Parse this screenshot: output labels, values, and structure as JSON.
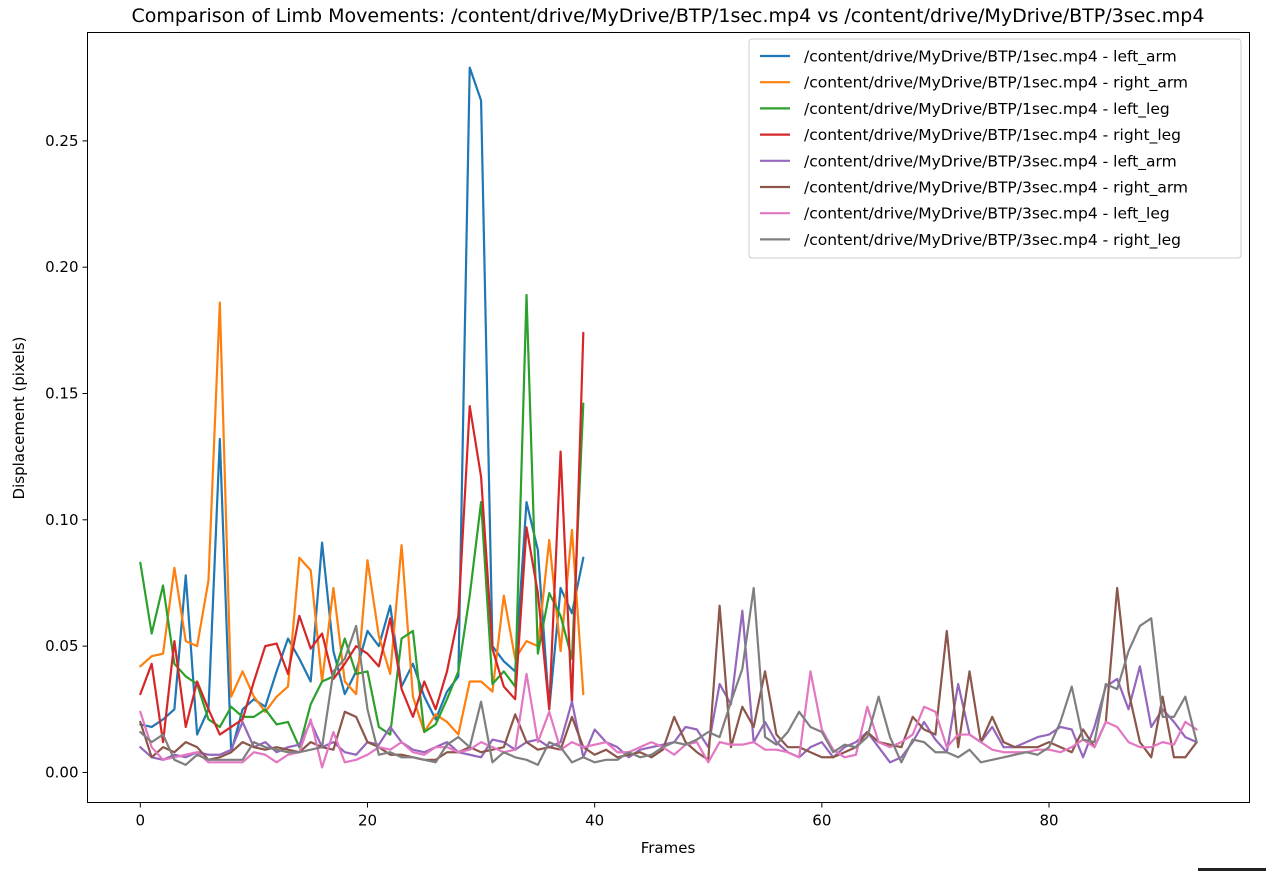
{
  "chart_data": {
    "type": "line",
    "title": "Comparison of Limb Movements: /content/drive/MyDrive/BTP/1sec.mp4 vs /content/drive/MyDrive/BTP/3sec.mp4",
    "xlabel": "Frames",
    "ylabel": "Displacement (pixels)",
    "xlim": [
      -4.65,
      97.65
    ],
    "ylim": [
      -0.0119,
      0.2929
    ],
    "xticks": [
      0,
      20,
      40,
      60,
      80
    ],
    "yticks": [
      0.0,
      0.05,
      0.1,
      0.15,
      0.2,
      0.25
    ],
    "xtick_labels": [
      "0",
      "20",
      "40",
      "60",
      "80"
    ],
    "ytick_labels": [
      "0.00",
      "0.05",
      "0.10",
      "0.15",
      "0.20",
      "0.25"
    ],
    "grid": false,
    "legend_position": "upper right",
    "series": [
      {
        "name": "/content/drive/MyDrive/BTP/1sec.mp4 - left_arm",
        "color": "#1f77b4",
        "values": [
          0.019,
          0.018,
          0.021,
          0.025,
          0.078,
          0.015,
          0.025,
          0.132,
          0.008,
          0.025,
          0.029,
          0.026,
          0.04,
          0.053,
          0.045,
          0.036,
          0.091,
          0.048,
          0.031,
          0.04,
          0.056,
          0.05,
          0.066,
          0.034,
          0.043,
          0.03,
          0.021,
          0.032,
          0.038,
          0.279,
          0.266,
          0.05,
          0.044,
          0.04,
          0.107,
          0.088,
          0.025,
          0.073,
          0.063,
          0.085
        ]
      },
      {
        "name": "/content/drive/MyDrive/BTP/1sec.mp4 - right_arm",
        "color": "#ff7f0e",
        "values": [
          0.042,
          0.046,
          0.047,
          0.081,
          0.052,
          0.05,
          0.076,
          0.186,
          0.03,
          0.04,
          0.03,
          0.024,
          0.03,
          0.034,
          0.085,
          0.08,
          0.036,
          0.073,
          0.036,
          0.031,
          0.084,
          0.054,
          0.039,
          0.09,
          0.03,
          0.016,
          0.023,
          0.02,
          0.015,
          0.036,
          0.036,
          0.032,
          0.07,
          0.045,
          0.052,
          0.05,
          0.092,
          0.048,
          0.096,
          0.031
        ]
      },
      {
        "name": "/content/drive/MyDrive/BTP/1sec.mp4 - left_leg",
        "color": "#2ca02c",
        "values": [
          0.083,
          0.055,
          0.074,
          0.043,
          0.038,
          0.035,
          0.021,
          0.018,
          0.026,
          0.022,
          0.022,
          0.025,
          0.019,
          0.02,
          0.01,
          0.027,
          0.036,
          0.038,
          0.053,
          0.039,
          0.04,
          0.018,
          0.015,
          0.053,
          0.056,
          0.016,
          0.019,
          0.029,
          0.04,
          0.07,
          0.107,
          0.035,
          0.04,
          0.034,
          0.189,
          0.047,
          0.071,
          0.062,
          0.045,
          0.146
        ]
      },
      {
        "name": "/content/drive/MyDrive/BTP/1sec.mp4 - right_leg",
        "color": "#d62728",
        "values": [
          0.031,
          0.043,
          0.012,
          0.052,
          0.018,
          0.036,
          0.025,
          0.015,
          0.018,
          0.021,
          0.036,
          0.05,
          0.051,
          0.039,
          0.062,
          0.049,
          0.055,
          0.037,
          0.043,
          0.05,
          0.047,
          0.042,
          0.061,
          0.033,
          0.022,
          0.036,
          0.025,
          0.04,
          0.062,
          0.145,
          0.117,
          0.049,
          0.034,
          0.029,
          0.097,
          0.071,
          0.025,
          0.127,
          0.027,
          0.174
        ]
      },
      {
        "name": "/content/drive/MyDrive/BTP/3sec.mp4 - left_arm",
        "color": "#9467bd",
        "values": [
          0.01,
          0.006,
          0.005,
          0.007,
          0.006,
          0.008,
          0.007,
          0.007,
          0.009,
          0.02,
          0.01,
          0.012,
          0.008,
          0.01,
          0.011,
          0.02,
          0.01,
          0.012,
          0.008,
          0.007,
          0.012,
          0.011,
          0.018,
          0.012,
          0.009,
          0.008,
          0.01,
          0.012,
          0.008,
          0.007,
          0.006,
          0.013,
          0.012,
          0.009,
          0.012,
          0.013,
          0.01,
          0.012,
          0.028,
          0.006,
          0.017,
          0.012,
          0.01,
          0.006,
          0.009,
          0.01,
          0.011,
          0.012,
          0.018,
          0.017,
          0.01,
          0.035,
          0.027,
          0.064,
          0.012,
          0.02,
          0.012,
          0.008,
          0.006,
          0.01,
          0.012,
          0.006,
          0.01,
          0.012,
          0.016,
          0.01,
          0.004,
          0.006,
          0.012,
          0.02,
          0.013,
          0.008,
          0.035,
          0.015,
          0.012,
          0.018,
          0.01,
          0.01,
          0.012,
          0.014,
          0.015,
          0.018,
          0.017,
          0.006,
          0.018,
          0.034,
          0.037,
          0.025,
          0.042,
          0.018,
          0.025,
          0.02,
          0.014,
          0.012
        ]
      },
      {
        "name": "/content/drive/MyDrive/BTP/3sec.mp4 - right_arm",
        "color": "#8c564b",
        "values": [
          0.02,
          0.006,
          0.01,
          0.008,
          0.012,
          0.01,
          0.005,
          0.006,
          0.008,
          0.012,
          0.01,
          0.009,
          0.01,
          0.009,
          0.008,
          0.012,
          0.01,
          0.009,
          0.024,
          0.022,
          0.012,
          0.01,
          0.007,
          0.007,
          0.006,
          0.005,
          0.005,
          0.008,
          0.008,
          0.01,
          0.008,
          0.009,
          0.01,
          0.023,
          0.012,
          0.009,
          0.01,
          0.009,
          0.022,
          0.01,
          0.007,
          0.009,
          0.006,
          0.007,
          0.008,
          0.006,
          0.009,
          0.022,
          0.012,
          0.008,
          0.005,
          0.066,
          0.01,
          0.026,
          0.018,
          0.04,
          0.015,
          0.01,
          0.01,
          0.008,
          0.006,
          0.006,
          0.008,
          0.01,
          0.016,
          0.012,
          0.011,
          0.01,
          0.022,
          0.017,
          0.015,
          0.056,
          0.01,
          0.04,
          0.012,
          0.022,
          0.012,
          0.01,
          0.01,
          0.01,
          0.012,
          0.01,
          0.008,
          0.017,
          0.01,
          0.02,
          0.073,
          0.032,
          0.012,
          0.006,
          0.03,
          0.006,
          0.006,
          0.012
        ]
      },
      {
        "name": "/content/drive/MyDrive/BTP/3sec.mp4 - left_leg",
        "color": "#e377c2",
        "values": [
          0.024,
          0.01,
          0.005,
          0.006,
          0.007,
          0.008,
          0.004,
          0.004,
          0.004,
          0.004,
          0.008,
          0.007,
          0.004,
          0.007,
          0.008,
          0.021,
          0.002,
          0.016,
          0.004,
          0.005,
          0.007,
          0.01,
          0.009,
          0.012,
          0.008,
          0.007,
          0.01,
          0.01,
          0.008,
          0.009,
          0.012,
          0.01,
          0.008,
          0.009,
          0.039,
          0.012,
          0.024,
          0.009,
          0.012,
          0.01,
          0.011,
          0.012,
          0.008,
          0.008,
          0.01,
          0.012,
          0.01,
          0.007,
          0.011,
          0.012,
          0.004,
          0.012,
          0.011,
          0.011,
          0.012,
          0.009,
          0.009,
          0.008,
          0.006,
          0.04,
          0.017,
          0.009,
          0.006,
          0.007,
          0.026,
          0.012,
          0.01,
          0.012,
          0.015,
          0.026,
          0.024,
          0.01,
          0.015,
          0.015,
          0.012,
          0.009,
          0.008,
          0.008,
          0.008,
          0.009,
          0.009,
          0.008,
          0.01,
          0.013,
          0.01,
          0.02,
          0.018,
          0.012,
          0.01,
          0.01,
          0.012,
          0.011,
          0.02,
          0.017
        ]
      },
      {
        "name": "/content/drive/MyDrive/BTP/3sec.mp4 - right_leg",
        "color": "#7f7f7f",
        "values": [
          0.016,
          0.012,
          0.015,
          0.005,
          0.003,
          0.007,
          0.005,
          0.005,
          0.005,
          0.005,
          0.012,
          0.01,
          0.009,
          0.008,
          0.008,
          0.009,
          0.01,
          0.04,
          0.045,
          0.058,
          0.025,
          0.007,
          0.008,
          0.006,
          0.006,
          0.005,
          0.004,
          0.011,
          0.014,
          0.01,
          0.028,
          0.004,
          0.008,
          0.006,
          0.005,
          0.003,
          0.012,
          0.01,
          0.004,
          0.006,
          0.004,
          0.005,
          0.005,
          0.008,
          0.006,
          0.007,
          0.01,
          0.012,
          0.011,
          0.013,
          0.016,
          0.014,
          0.028,
          0.041,
          0.073,
          0.014,
          0.011,
          0.016,
          0.024,
          0.018,
          0.016,
          0.008,
          0.011,
          0.01,
          0.014,
          0.03,
          0.014,
          0.004,
          0.013,
          0.012,
          0.008,
          0.008,
          0.006,
          0.009,
          0.004,
          0.005,
          0.006,
          0.007,
          0.008,
          0.007,
          0.01,
          0.02,
          0.034,
          0.013,
          0.012,
          0.035,
          0.033,
          0.048,
          0.058,
          0.061,
          0.022,
          0.022,
          0.03,
          0.012
        ]
      }
    ]
  }
}
